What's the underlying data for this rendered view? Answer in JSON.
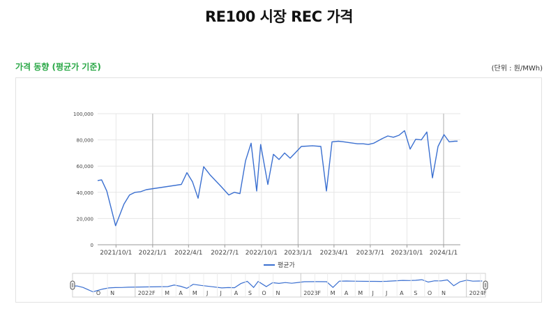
{
  "page": {
    "title": "RE100 시장 REC 가격",
    "section_title": "가격 동향 (평균가 기준)",
    "unit": "(단위 : 원/MWh)"
  },
  "colors": {
    "series": "#3a6fd0",
    "section_title": "#28a745",
    "grid": "#e6e6e6"
  },
  "chart_data": {
    "type": "line",
    "title": "",
    "xlabel": "",
    "ylabel": "",
    "ylim": [
      0,
      100000
    ],
    "yticks": [
      0,
      20000,
      40000,
      60000,
      80000,
      100000
    ],
    "ytick_labels": [
      "0",
      "20,000",
      "40,000",
      "60,000",
      "80,000",
      "100,000"
    ],
    "xlim": [
      "2021-08-16",
      "2024-02-12"
    ],
    "xticks": [
      "2021-10-01",
      "2022-01-01",
      "2022-04-01",
      "2022-07-01",
      "2022-10-01",
      "2023-01-01",
      "2023-04-01",
      "2023-07-01",
      "2023-10-01",
      "2024-01-01"
    ],
    "xtick_labels": [
      "2021/10/1",
      "2022/1/1",
      "2022/4/1",
      "2022/7/1",
      "2022/10/1",
      "2023/1/1",
      "2023/4/1",
      "2023/7/1",
      "2023/10/1",
      "2024/1/1"
    ],
    "grid": true,
    "legend": {
      "position": "bottom",
      "entries": [
        "평균가"
      ]
    },
    "series": [
      {
        "name": "평균가",
        "x": [
          "2021-08-16",
          "2021-08-26",
          "2021-09-08",
          "2021-09-30",
          "2021-10-21",
          "2021-11-04",
          "2021-11-18",
          "2021-12-02",
          "2021-12-16",
          "2022-03-14",
          "2022-03-28",
          "2022-04-11",
          "2022-04-25",
          "2022-05-09",
          "2022-05-26",
          "2022-06-20",
          "2022-07-11",
          "2022-07-25",
          "2022-08-08",
          "2022-08-22",
          "2022-09-05",
          "2022-09-19",
          "2022-09-29",
          "2022-10-17",
          "2022-10-31",
          "2022-11-14",
          "2022-11-28",
          "2022-12-12",
          "2022-12-26",
          "2023-01-09",
          "2023-02-06",
          "2023-02-27",
          "2023-03-13",
          "2023-03-27",
          "2023-04-12",
          "2023-04-26",
          "2023-05-08",
          "2023-05-30",
          "2023-06-13",
          "2023-06-26",
          "2023-07-10",
          "2023-07-31",
          "2023-08-14",
          "2023-08-28",
          "2023-09-11",
          "2023-09-25",
          "2023-10-09",
          "2023-10-23",
          "2023-11-06",
          "2023-11-20",
          "2023-12-04",
          "2023-12-18",
          "2024-01-02",
          "2024-01-15",
          "2024-01-29",
          "2024-02-05"
        ],
        "values": [
          49000,
          49500,
          41000,
          14500,
          31000,
          38000,
          40000,
          40500,
          42000,
          46000,
          55000,
          48000,
          35500,
          59500,
          53000,
          45000,
          38000,
          40000,
          39000,
          64000,
          77500,
          41000,
          76500,
          46000,
          69000,
          65000,
          70000,
          66000,
          70500,
          75000,
          75500,
          75000,
          41000,
          78500,
          79000,
          78500,
          78000,
          77000,
          77000,
          76500,
          77500,
          81000,
          83000,
          82000,
          83500,
          87000,
          73000,
          80500,
          80000,
          86000,
          51000,
          75000,
          84000,
          78500,
          79000,
          79000
        ]
      }
    ]
  },
  "navigator": {
    "labels": [
      "O",
      "N",
      "2022",
      "F",
      "M",
      "A",
      "M",
      "J",
      "J",
      "A",
      "S",
      "O",
      "N",
      "2023",
      "F",
      "M",
      "A",
      "M",
      "J",
      "J",
      "A",
      "S",
      "O",
      "N",
      "2024",
      "F"
    ],
    "label_dates": [
      "2021-10-01",
      "2021-11-01",
      "2022-01-01",
      "2022-02-01",
      "2022-03-01",
      "2022-04-01",
      "2022-05-01",
      "2022-06-01",
      "2022-07-01",
      "2022-08-01",
      "2022-09-01",
      "2022-10-01",
      "2022-11-01",
      "2023-01-01",
      "2023-02-01",
      "2023-03-01",
      "2023-04-01",
      "2023-05-01",
      "2023-06-01",
      "2023-07-01",
      "2023-08-01",
      "2023-09-01",
      "2023-10-01",
      "2023-11-01",
      "2024-01-01",
      "2024-02-01"
    ]
  }
}
